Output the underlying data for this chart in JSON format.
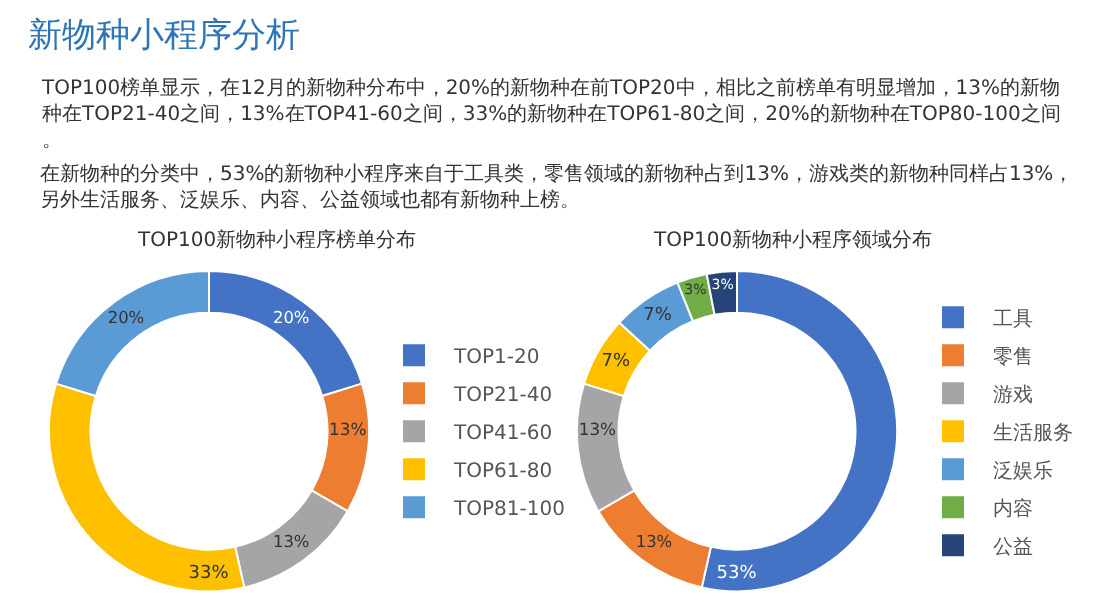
{
  "chart_data": [
    {
      "type": "other",
      "title": "新物种小程序分析",
      "annotations": [
        "TOP100榜单显示，在12月的新物种分布中，20%的新物种在前TOP20中，相比之前榜单有明显增加，13%的新物种在TOP21-40之间，13%在TOP41-60之间，33%的新物种在TOP61-80之间，20%的新物种在TOP80-100之间。",
        "在新物种的分类中，53%的新物种小程序来自于工具类，零售领域的新物种占到13%，游戏类的新物种同样占13%，另外生活服务、泛娱乐、内容、公益领域也都有新物种上榜。"
      ]
    },
    {
      "type": "donut",
      "title": "TOP100新物种小程序榜单分布",
      "legend": "right",
      "categories": [
        "TOP1-20",
        "TOP21-40",
        "TOP41-60",
        "TOP61-80",
        "TOP81-100"
      ],
      "values": [
        20,
        13,
        13,
        33,
        20
      ],
      "value_labels": [
        "20%",
        "13%",
        "13%",
        "33%",
        "20%"
      ],
      "colors": [
        "#4472c4",
        "#ed7d31",
        "#a5a5a5",
        "#ffc000",
        "#5b9bd5"
      ]
    },
    {
      "type": "donut",
      "title": "TOP100新物种小程序领域分布",
      "legend": "right",
      "categories": [
        "工具",
        "零售",
        "游戏",
        "生活服务",
        "泛娱乐",
        "内容",
        "公益"
      ],
      "values": [
        53,
        13,
        13,
        7,
        7,
        3,
        3
      ],
      "value_labels": [
        "53%",
        "13%",
        "13%",
        "7%",
        "7%",
        "3%",
        "3%"
      ],
      "colors": [
        "#4472c4",
        "#ed7d31",
        "#a5a5a5",
        "#ffc000",
        "#5b9bd5",
        "#70ad47",
        "#264478"
      ]
    }
  ]
}
